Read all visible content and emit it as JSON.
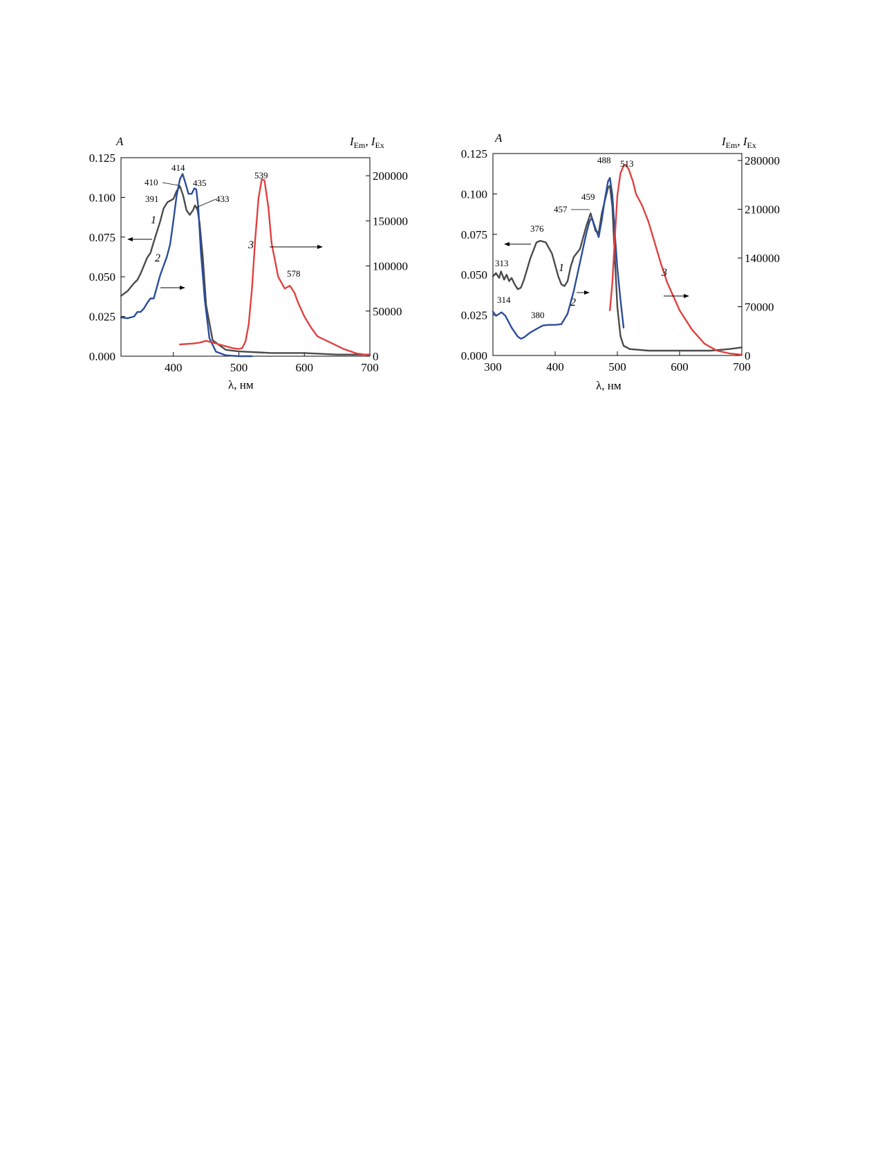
{
  "chart_data": [
    {
      "type": "line",
      "x_label": "λ, нм",
      "y_left_label": "A",
      "y_right_label": {
        "I1": "I",
        "s1": "Em",
        "sep": ", ",
        "I2": "I",
        "s2": "Ex"
      },
      "xlim": [
        320,
        700
      ],
      "ylim_left": [
        0,
        0.125
      ],
      "ylim_right": [
        0,
        220000
      ],
      "x_ticks": [
        400,
        500,
        600,
        700
      ],
      "y_left_ticks": [
        "0.000",
        "0.025",
        "0.050",
        "0.075",
        "0.100",
        "0.125"
      ],
      "y_right_ticks": [
        "0",
        "50000",
        "100000",
        "150000",
        "200000"
      ],
      "series": [
        {
          "name": "1",
          "axis": "left",
          "color": "#4a4a4a",
          "x": [
            320,
            330,
            340,
            345,
            350,
            360,
            365,
            370,
            380,
            385,
            391,
            400,
            405,
            410,
            415,
            420,
            425,
            430,
            433,
            437,
            440,
            445,
            450,
            460,
            480,
            500,
            550,
            600,
            650,
            700
          ],
          "y": [
            0.038,
            0.041,
            0.046,
            0.048,
            0.052,
            0.062,
            0.065,
            0.072,
            0.085,
            0.093,
            0.097,
            0.099,
            0.104,
            0.107,
            0.101,
            0.092,
            0.089,
            0.092,
            0.095,
            0.092,
            0.084,
            0.062,
            0.032,
            0.01,
            0.004,
            0.003,
            0.002,
            0.002,
            0.001,
            0.001
          ]
        },
        {
          "name": "2",
          "axis": "right",
          "color": "#2b4c9b",
          "x": [
            320,
            330,
            340,
            345,
            350,
            355,
            360,
            365,
            370,
            380,
            390,
            395,
            400,
            405,
            410,
            414,
            418,
            423,
            428,
            432,
            435,
            438,
            442,
            448,
            455,
            465,
            480,
            500,
            520
          ],
          "y": [
            43000,
            42000,
            44000,
            49000,
            49000,
            53000,
            59000,
            64000,
            64000,
            90000,
            110000,
            124000,
            150000,
            178000,
            196000,
            202000,
            193000,
            180000,
            180000,
            186000,
            185000,
            165000,
            115000,
            62000,
            20000,
            5000,
            1000,
            0,
            0
          ]
        },
        {
          "name": "3",
          "axis": "right",
          "color": "#e0403f",
          "x": [
            410,
            430,
            440,
            450,
            460,
            470,
            480,
            490,
            500,
            505,
            510,
            515,
            520,
            525,
            530,
            535,
            539,
            545,
            550,
            560,
            570,
            578,
            585,
            590,
            600,
            610,
            620,
            640,
            660,
            680,
            700
          ],
          "y": [
            13000,
            14000,
            15000,
            17000,
            15000,
            13000,
            11000,
            9000,
            8000,
            9000,
            16000,
            35000,
            75000,
            130000,
            175000,
            196000,
            195000,
            165000,
            125000,
            88000,
            75000,
            78000,
            70000,
            60000,
            44000,
            32000,
            22000,
            15000,
            8000,
            3000,
            1000
          ]
        }
      ],
      "annotations": [
        "414",
        "410",
        "435",
        "391",
        "433",
        "539",
        "578"
      ],
      "curve_numbers": [
        "1",
        "2",
        "3"
      ]
    },
    {
      "type": "line",
      "x_label": "λ, нм",
      "y_left_label": "A",
      "y_right_label": {
        "I1": "I",
        "s1": "Em",
        "sep": ", ",
        "I2": "I",
        "s2": "Ex"
      },
      "xlim": [
        300,
        700
      ],
      "ylim_left": [
        0,
        0.125
      ],
      "ylim_right": [
        0,
        290000
      ],
      "x_ticks": [
        300,
        400,
        500,
        600,
        700
      ],
      "y_left_ticks": [
        "0.000",
        "0.025",
        "0.050",
        "0.075",
        "0.100",
        "0.125"
      ],
      "y_right_ticks": [
        "0",
        "70000",
        "140000",
        "210000",
        "280000"
      ],
      "series": [
        {
          "name": "1",
          "axis": "left",
          "color": "#4a4a4a",
          "x": [
            300,
            305,
            310,
            313,
            318,
            322,
            326,
            330,
            335,
            340,
            345,
            350,
            360,
            370,
            376,
            385,
            395,
            400,
            405,
            410,
            415,
            420,
            425,
            430,
            440,
            450,
            457,
            460,
            465,
            470,
            475,
            480,
            485,
            488,
            492,
            496,
            500,
            505,
            510,
            520,
            550,
            600,
            650,
            680,
            700
          ],
          "y": [
            0.049,
            0.051,
            0.048,
            0.052,
            0.047,
            0.05,
            0.046,
            0.048,
            0.044,
            0.041,
            0.042,
            0.047,
            0.06,
            0.07,
            0.071,
            0.07,
            0.063,
            0.056,
            0.049,
            0.044,
            0.043,
            0.046,
            0.055,
            0.061,
            0.066,
            0.08,
            0.088,
            0.084,
            0.077,
            0.076,
            0.088,
            0.096,
            0.104,
            0.105,
            0.092,
            0.06,
            0.03,
            0.012,
            0.006,
            0.004,
            0.003,
            0.003,
            0.003,
            0.004,
            0.005
          ]
        },
        {
          "name": "2",
          "axis": "right",
          "color": "#2b4c9b",
          "x": [
            300,
            305,
            314,
            320,
            330,
            340,
            345,
            350,
            360,
            370,
            380,
            390,
            400,
            410,
            420,
            430,
            440,
            450,
            455,
            459,
            465,
            470,
            475,
            480,
            485,
            488,
            492,
            496,
            500,
            505,
            510
          ],
          "y": [
            63000,
            57000,
            62000,
            57000,
            40000,
            27000,
            24000,
            26000,
            33000,
            38000,
            43000,
            44000,
            44000,
            45000,
            60000,
            93000,
            134000,
            175000,
            192000,
            198000,
            182000,
            170000,
            195000,
            225000,
            250000,
            255000,
            230000,
            175000,
            125000,
            80000,
            40000
          ]
        },
        {
          "name": "3",
          "axis": "right",
          "color": "#e0403f",
          "x": [
            488,
            492,
            496,
            500,
            505,
            510,
            513,
            518,
            525,
            530,
            540,
            550,
            560,
            570,
            580,
            600,
            620,
            640,
            660,
            680,
            700
          ],
          "y": [
            65000,
            105000,
            170000,
            230000,
            262000,
            272000,
            274000,
            268000,
            250000,
            232000,
            215000,
            192000,
            162000,
            132000,
            105000,
            65000,
            37000,
            17000,
            7000,
            3000,
            1000
          ]
        }
      ],
      "annotations": [
        "488",
        "513",
        "459",
        "457",
        "376",
        "313",
        "314",
        "380"
      ],
      "curve_numbers": [
        "1",
        "2",
        "3"
      ]
    }
  ]
}
